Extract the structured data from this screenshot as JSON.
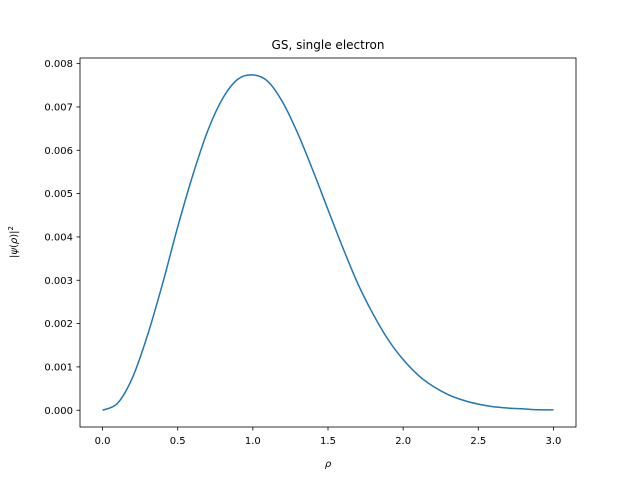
{
  "chart_data": {
    "type": "line",
    "title": "GS, single electron",
    "xlabel": "ρ",
    "ylabel": "|ψ(ρ)|²",
    "ylabel_parts": {
      "open": "|",
      "psi": "ψ",
      "arg": "(",
      "rho": "ρ",
      "close": ")|",
      "sup": "2"
    },
    "xlim": [
      -0.15,
      3.15
    ],
    "ylim": [
      -0.000387,
      0.00813
    ],
    "xticks": [
      0.0,
      0.5,
      1.0,
      1.5,
      2.0,
      2.5,
      3.0
    ],
    "xtick_labels": [
      "0.0",
      "0.5",
      "1.0",
      "1.5",
      "2.0",
      "2.5",
      "3.0"
    ],
    "yticks": [
      0.0,
      0.001,
      0.002,
      0.003,
      0.004,
      0.005,
      0.006,
      0.007,
      0.008
    ],
    "ytick_labels": [
      "0.000",
      "0.001",
      "0.002",
      "0.003",
      "0.004",
      "0.005",
      "0.006",
      "0.007",
      "0.008"
    ],
    "grid": false,
    "series": [
      {
        "color": "#1f77b4",
        "x": [
          0.0,
          0.1,
          0.2,
          0.3,
          0.4,
          0.5,
          0.6,
          0.7,
          0.8,
          0.9,
          1.0,
          1.1,
          1.2,
          1.3,
          1.4,
          1.5,
          1.6,
          1.7,
          1.8,
          1.9,
          2.0,
          2.1,
          2.2,
          2.3,
          2.4,
          2.5,
          2.6,
          2.7,
          2.8,
          2.9,
          3.0
        ],
        "y": [
          0.0,
          0.00016,
          0.00076,
          0.00174,
          0.00293,
          0.00423,
          0.00542,
          0.00645,
          0.0072,
          0.00764,
          0.00774,
          0.00759,
          0.0071,
          0.00638,
          0.00553,
          0.00463,
          0.00374,
          0.00291,
          0.00222,
          0.00163,
          0.00117,
          0.00081,
          0.00055,
          0.00036,
          0.00023,
          0.00014,
          8e-05,
          5e-05,
          3e-05,
          1e-05,
          1e-05
        ]
      }
    ]
  }
}
